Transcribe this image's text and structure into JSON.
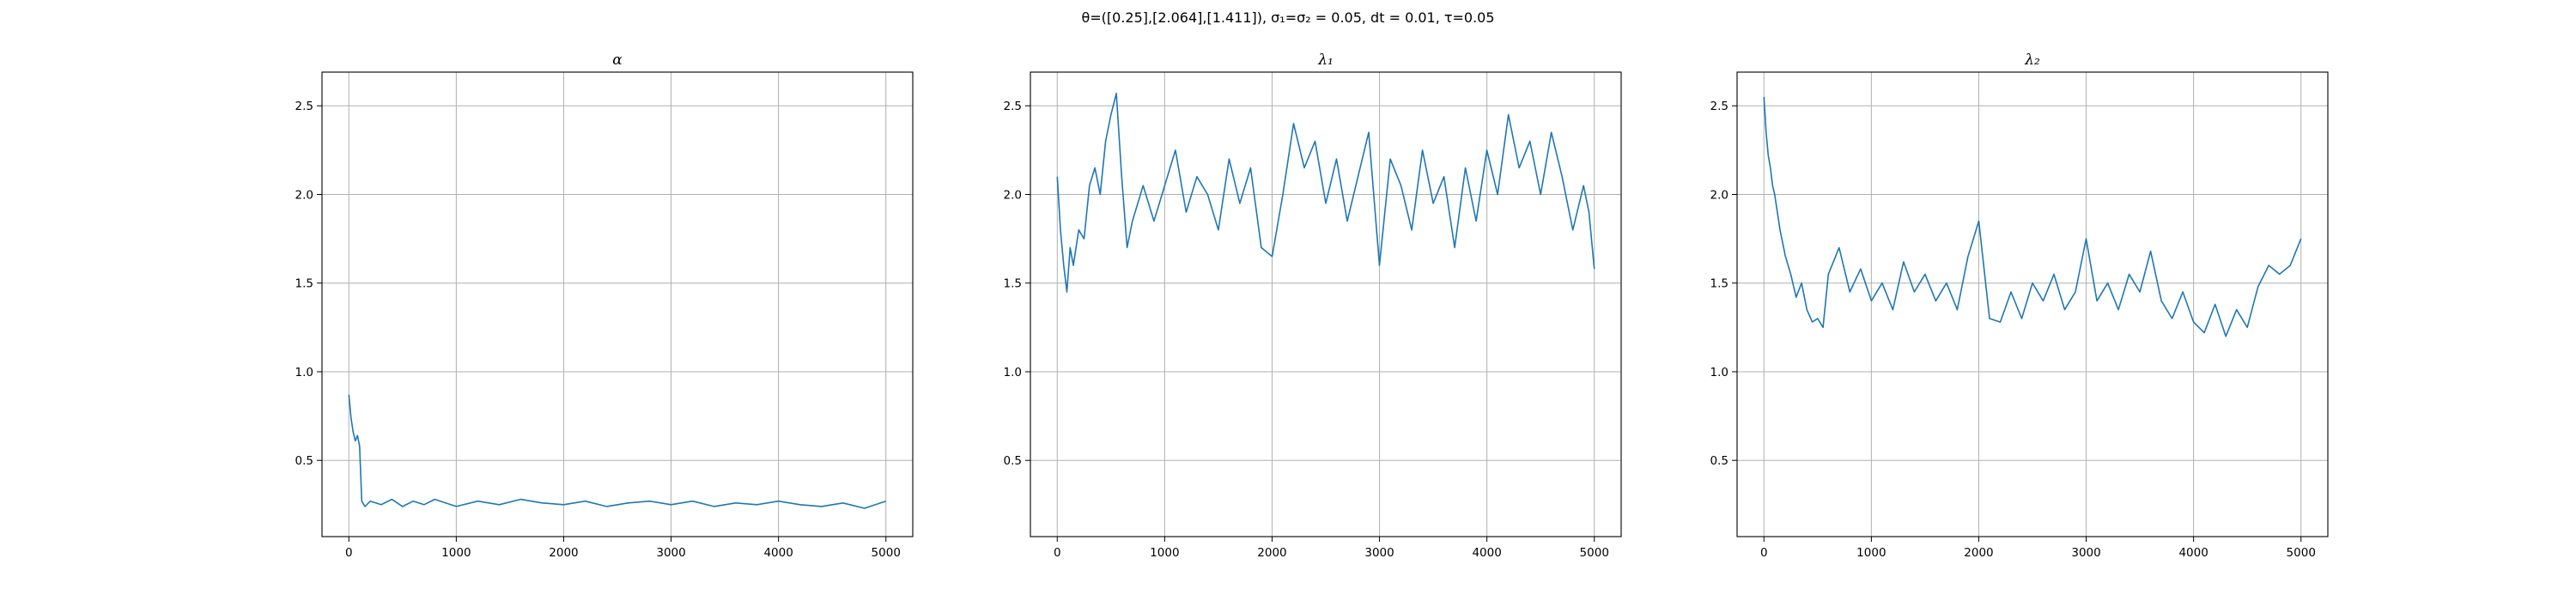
{
  "figure": {
    "suptitle": "θ=([0.25],[2.064],[1.411]), σ₁=σ₂ = 0.05, dt = 0.01, τ=0.05"
  },
  "colors": {
    "series": "#1f77b4",
    "grid": "#b0b0b0"
  },
  "chart_data": [
    {
      "type": "line",
      "title": "α",
      "xlabel": "",
      "ylabel": "",
      "xlim": [
        -250,
        5250
      ],
      "ylim": [
        0.07,
        2.69
      ],
      "xticks": [
        0,
        1000,
        2000,
        3000,
        4000,
        5000
      ],
      "xtick_labels": [
        "0",
        "1000",
        "2000",
        "3000",
        "4000",
        "5000"
      ],
      "yticks": [
        0.5,
        1.0,
        1.5,
        2.0,
        2.5
      ],
      "ytick_labels": [
        "0.5",
        "1.0",
        "1.5",
        "2.0",
        "2.5"
      ],
      "grid": true,
      "series": [
        {
          "x": [
            0,
            20,
            40,
            60,
            80,
            100,
            120,
            150,
            200,
            300,
            400,
            500,
            600,
            700,
            800,
            900,
            1000,
            1200,
            1400,
            1600,
            1800,
            2000,
            2200,
            2400,
            2600,
            2800,
            3000,
            3200,
            3400,
            3600,
            3800,
            4000,
            4200,
            4400,
            4600,
            4800,
            5000
          ],
          "y": [
            0.87,
            0.74,
            0.66,
            0.61,
            0.64,
            0.58,
            0.27,
            0.24,
            0.27,
            0.25,
            0.28,
            0.24,
            0.27,
            0.25,
            0.28,
            0.26,
            0.24,
            0.27,
            0.25,
            0.28,
            0.26,
            0.25,
            0.27,
            0.24,
            0.26,
            0.27,
            0.25,
            0.27,
            0.24,
            0.26,
            0.25,
            0.27,
            0.25,
            0.24,
            0.26,
            0.23,
            0.27
          ]
        }
      ]
    },
    {
      "type": "line",
      "title": "λ₁",
      "xlabel": "",
      "ylabel": "",
      "xlim": [
        -250,
        5250
      ],
      "ylim": [
        0.07,
        2.69
      ],
      "xticks": [
        0,
        1000,
        2000,
        3000,
        4000,
        5000
      ],
      "xtick_labels": [
        "0",
        "1000",
        "2000",
        "3000",
        "4000",
        "5000"
      ],
      "yticks": [
        0.5,
        1.0,
        1.5,
        2.0,
        2.5
      ],
      "ytick_labels": [
        "0.5",
        "1.0",
        "1.5",
        "2.0",
        "2.5"
      ],
      "grid": true,
      "series": [
        {
          "x": [
            0,
            30,
            60,
            90,
            120,
            150,
            200,
            250,
            300,
            350,
            400,
            450,
            500,
            550,
            600,
            650,
            700,
            800,
            900,
            1000,
            1100,
            1200,
            1300,
            1400,
            1500,
            1600,
            1700,
            1800,
            1900,
            2000,
            2100,
            2200,
            2300,
            2400,
            2500,
            2600,
            2700,
            2800,
            2900,
            3000,
            3100,
            3200,
            3300,
            3400,
            3500,
            3600,
            3700,
            3800,
            3900,
            4000,
            4100,
            4200,
            4300,
            4400,
            4500,
            4600,
            4700,
            4800,
            4900,
            4950,
            5000
          ],
          "y": [
            2.1,
            1.8,
            1.6,
            1.45,
            1.7,
            1.6,
            1.8,
            1.75,
            2.05,
            2.15,
            2.0,
            2.3,
            2.45,
            2.57,
            2.1,
            1.7,
            1.85,
            2.05,
            1.85,
            2.05,
            2.25,
            1.9,
            2.1,
            2.0,
            1.8,
            2.2,
            1.95,
            2.15,
            1.7,
            1.65,
            2.0,
            2.4,
            2.15,
            2.3,
            1.95,
            2.2,
            1.85,
            2.1,
            2.35,
            1.6,
            2.2,
            2.05,
            1.8,
            2.25,
            1.95,
            2.1,
            1.7,
            2.15,
            1.85,
            2.25,
            2.0,
            2.45,
            2.15,
            2.3,
            2.0,
            2.35,
            2.1,
            1.8,
            2.05,
            1.9,
            1.58
          ]
        }
      ]
    },
    {
      "type": "line",
      "title": "λ₂",
      "xlabel": "",
      "ylabel": "",
      "xlim": [
        -250,
        5250
      ],
      "ylim": [
        0.07,
        2.69
      ],
      "xticks": [
        0,
        1000,
        2000,
        3000,
        4000,
        5000
      ],
      "xtick_labels": [
        "0",
        "1000",
        "2000",
        "3000",
        "4000",
        "5000"
      ],
      "yticks": [
        0.5,
        1.0,
        1.5,
        2.0,
        2.5
      ],
      "ytick_labels": [
        "0.5",
        "1.0",
        "1.5",
        "2.0",
        "2.5"
      ],
      "grid": true,
      "series": [
        {
          "x": [
            0,
            20,
            40,
            60,
            80,
            100,
            150,
            200,
            250,
            300,
            350,
            400,
            450,
            500,
            550,
            600,
            700,
            800,
            900,
            1000,
            1100,
            1200,
            1300,
            1400,
            1500,
            1600,
            1700,
            1800,
            1900,
            2000,
            2100,
            2200,
            2300,
            2400,
            2500,
            2600,
            2700,
            2800,
            2900,
            3000,
            3100,
            3200,
            3300,
            3400,
            3500,
            3600,
            3700,
            3800,
            3900,
            4000,
            4100,
            4200,
            4300,
            4400,
            4500,
            4600,
            4700,
            4800,
            4900,
            5000
          ],
          "y": [
            2.55,
            2.35,
            2.22,
            2.15,
            2.05,
            2.0,
            1.8,
            1.65,
            1.55,
            1.42,
            1.5,
            1.35,
            1.28,
            1.3,
            1.25,
            1.55,
            1.7,
            1.45,
            1.58,
            1.4,
            1.5,
            1.35,
            1.62,
            1.45,
            1.55,
            1.4,
            1.5,
            1.35,
            1.65,
            1.85,
            1.3,
            1.28,
            1.45,
            1.3,
            1.5,
            1.4,
            1.55,
            1.35,
            1.45,
            1.75,
            1.4,
            1.5,
            1.35,
            1.55,
            1.45,
            1.68,
            1.4,
            1.3,
            1.45,
            1.28,
            1.22,
            1.38,
            1.2,
            1.35,
            1.25,
            1.48,
            1.6,
            1.55,
            1.6,
            1.75
          ]
        }
      ]
    }
  ]
}
